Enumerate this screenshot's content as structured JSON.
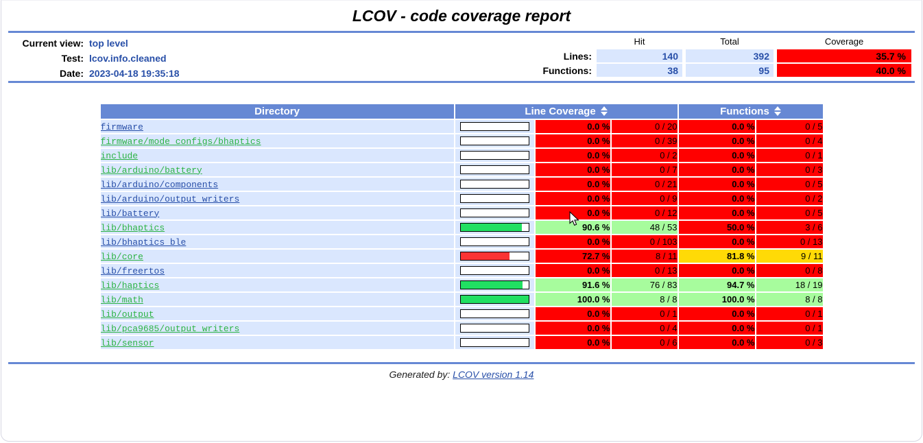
{
  "title": "LCOV - code coverage report",
  "header": {
    "current_view_label": "Current view:",
    "current_view_value": "top level",
    "test_label": "Test:",
    "test_value": "lcov.info.cleaned",
    "date_label": "Date:",
    "date_value": "2023-04-18 19:35:18",
    "columns": {
      "hit": "Hit",
      "total": "Total",
      "coverage": "Coverage"
    },
    "lines_label": "Lines:",
    "lines": {
      "hit": "140",
      "total": "392",
      "coverage": "35.7 %",
      "level": "lo"
    },
    "functions_label": "Functions:",
    "functions": {
      "hit": "38",
      "total": "95",
      "coverage": "40.0 %",
      "level": "lo"
    }
  },
  "table": {
    "headers": {
      "directory": "Directory",
      "line_coverage": "Line Coverage",
      "functions": "Functions"
    },
    "rows": [
      {
        "dir": "firmware",
        "visited": false,
        "bar_pct": 0,
        "bar_color": "none",
        "line_pct": "0.0 %",
        "line_ratio": "0 / 20",
        "line_level": "lo",
        "fn_pct": "0.0 %",
        "fn_ratio": "0 / 5",
        "fn_level": "lo"
      },
      {
        "dir": "firmware/mode_configs/bhaptics",
        "visited": true,
        "bar_pct": 0,
        "bar_color": "none",
        "line_pct": "0.0 %",
        "line_ratio": "0 / 39",
        "line_level": "lo",
        "fn_pct": "0.0 %",
        "fn_ratio": "0 / 4",
        "fn_level": "lo"
      },
      {
        "dir": "include",
        "visited": true,
        "bar_pct": 0,
        "bar_color": "none",
        "line_pct": "0.0 %",
        "line_ratio": "0 / 2",
        "line_level": "lo",
        "fn_pct": "0.0 %",
        "fn_ratio": "0 / 1",
        "fn_level": "lo"
      },
      {
        "dir": "lib/arduino/battery",
        "visited": true,
        "bar_pct": 0,
        "bar_color": "none",
        "line_pct": "0.0 %",
        "line_ratio": "0 / 7",
        "line_level": "lo",
        "fn_pct": "0.0 %",
        "fn_ratio": "0 / 3",
        "fn_level": "lo"
      },
      {
        "dir": "lib/arduino/components",
        "visited": false,
        "bar_pct": 0,
        "bar_color": "none",
        "line_pct": "0.0 %",
        "line_ratio": "0 / 21",
        "line_level": "lo",
        "fn_pct": "0.0 %",
        "fn_ratio": "0 / 5",
        "fn_level": "lo"
      },
      {
        "dir": "lib/arduino/output_writers",
        "visited": false,
        "bar_pct": 0,
        "bar_color": "none",
        "line_pct": "0.0 %",
        "line_ratio": "0 / 9",
        "line_level": "lo",
        "fn_pct": "0.0 %",
        "fn_ratio": "0 / 2",
        "fn_level": "lo"
      },
      {
        "dir": "lib/battery",
        "visited": false,
        "bar_pct": 0,
        "bar_color": "none",
        "line_pct": "0.0 %",
        "line_ratio": "0 / 12",
        "line_level": "lo",
        "fn_pct": "0.0 %",
        "fn_ratio": "0 / 5",
        "fn_level": "lo"
      },
      {
        "dir": "lib/bhaptics",
        "visited": true,
        "bar_pct": 90.6,
        "bar_color": "green",
        "line_pct": "90.6 %",
        "line_ratio": "48 / 53",
        "line_level": "hi",
        "fn_pct": "50.0 %",
        "fn_ratio": "3 / 6",
        "fn_level": "lo"
      },
      {
        "dir": "lib/bhaptics_ble",
        "visited": false,
        "bar_pct": 0,
        "bar_color": "none",
        "line_pct": "0.0 %",
        "line_ratio": "0 / 103",
        "line_level": "lo",
        "fn_pct": "0.0 %",
        "fn_ratio": "0 / 13",
        "fn_level": "lo"
      },
      {
        "dir": "lib/core",
        "visited": true,
        "bar_pct": 72.7,
        "bar_color": "red",
        "line_pct": "72.7 %",
        "line_ratio": "8 / 11",
        "line_level": "lo",
        "fn_pct": "81.8 %",
        "fn_ratio": "9 / 11",
        "fn_level": "med"
      },
      {
        "dir": "lib/freertos",
        "visited": false,
        "bar_pct": 0,
        "bar_color": "none",
        "line_pct": "0.0 %",
        "line_ratio": "0 / 13",
        "line_level": "lo",
        "fn_pct": "0.0 %",
        "fn_ratio": "0 / 8",
        "fn_level": "lo"
      },
      {
        "dir": "lib/haptics",
        "visited": true,
        "bar_pct": 91.6,
        "bar_color": "green",
        "line_pct": "91.6 %",
        "line_ratio": "76 / 83",
        "line_level": "hi",
        "fn_pct": "94.7 %",
        "fn_ratio": "18 / 19",
        "fn_level": "hi"
      },
      {
        "dir": "lib/math",
        "visited": true,
        "bar_pct": 100,
        "bar_color": "green",
        "line_pct": "100.0 %",
        "line_ratio": "8 / 8",
        "line_level": "hi",
        "fn_pct": "100.0 %",
        "fn_ratio": "8 / 8",
        "fn_level": "hi"
      },
      {
        "dir": "lib/output",
        "visited": true,
        "bar_pct": 0,
        "bar_color": "none",
        "line_pct": "0.0 %",
        "line_ratio": "0 / 1",
        "line_level": "lo",
        "fn_pct": "0.0 %",
        "fn_ratio": "0 / 1",
        "fn_level": "lo"
      },
      {
        "dir": "lib/pca9685/output_writers",
        "visited": true,
        "bar_pct": 0,
        "bar_color": "none",
        "line_pct": "0.0 %",
        "line_ratio": "0 / 4",
        "line_level": "lo",
        "fn_pct": "0.0 %",
        "fn_ratio": "0 / 1",
        "fn_level": "lo"
      },
      {
        "dir": "lib/sensor",
        "visited": true,
        "bar_pct": 0,
        "bar_color": "none",
        "line_pct": "0.0 %",
        "line_ratio": "0 / 6",
        "line_level": "lo",
        "fn_pct": "0.0 %",
        "fn_ratio": "0 / 3",
        "fn_level": "lo"
      }
    ]
  },
  "footer": {
    "generated_by": "Generated by:",
    "link_text": "LCOV version 1.14"
  },
  "icons": {
    "sort": "up-down-triangles",
    "cursor": "arrow-pointer"
  },
  "colors": {
    "head-blue": "#6688D4",
    "cell-blue": "#DAE7FE",
    "hi": "#A7FC9D",
    "med": "#FFDA06",
    "lo": "#FF0000",
    "link": "#284FA8",
    "vlink": "#2DB344",
    "bar-green": "#21E062",
    "bar-red": "#FA3434"
  }
}
